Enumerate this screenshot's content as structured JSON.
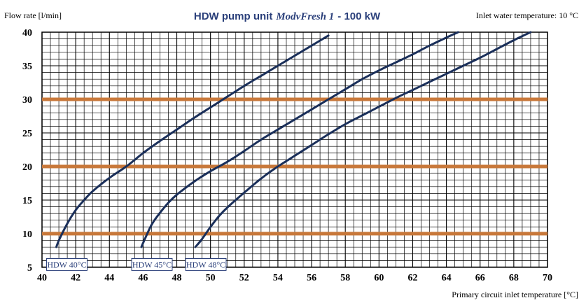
{
  "chart_data": {
    "type": "line",
    "title": "HDW pump unit",
    "title_model": "ModvFresh 1",
    "title_power": "- 100 kW",
    "ylabel": "Flow rate [l/min]",
    "xlabel": "Primary circuit inlet temperature [°C]",
    "note": "Inlet water temperature: 10 °C",
    "xlim": [
      40,
      70
    ],
    "ylim": [
      5,
      40
    ],
    "x_ticks": [
      40,
      42,
      44,
      46,
      48,
      50,
      52,
      54,
      56,
      58,
      60,
      62,
      64,
      66,
      68,
      70
    ],
    "y_ticks": [
      5,
      10,
      15,
      20,
      25,
      30,
      35,
      40
    ],
    "grid": true,
    "highlight_lines": [
      10,
      20,
      30
    ],
    "series": [
      {
        "name": "HDW 40°C",
        "x": [
          40.85,
          41.0,
          41.5,
          42.0,
          42.5,
          43.0,
          44.0,
          45.0,
          46.0,
          47.0,
          48.0,
          49.0,
          50.0,
          51.0,
          52.0,
          53.0,
          54.0,
          55.0,
          56.0,
          57.0
        ],
        "y": [
          8.0,
          9.0,
          11.5,
          13.5,
          15.0,
          16.3,
          18.3,
          20.0,
          22.0,
          23.8,
          25.5,
          27.2,
          28.8,
          30.4,
          32.0,
          33.5,
          35.0,
          36.5,
          38.0,
          39.5
        ]
      },
      {
        "name": "HDW 45°C",
        "x": [
          45.9,
          46.0,
          46.5,
          47.0,
          47.5,
          48.0,
          49.0,
          50.0,
          51.0,
          52.0,
          53.0,
          54.0,
          55.0,
          56.0,
          57.0,
          58.0,
          59.0,
          60.0,
          61.0,
          62.0,
          63.0,
          64.0,
          64.7
        ],
        "y": [
          8.0,
          8.6,
          11.3,
          13.1,
          14.6,
          15.8,
          17.7,
          19.3,
          20.7,
          22.3,
          24.0,
          25.5,
          27.0,
          28.5,
          30.0,
          31.5,
          33.0,
          34.3,
          35.5,
          36.7,
          38.0,
          39.2,
          40.0
        ]
      },
      {
        "name": "HDW 48°C",
        "x": [
          49.1,
          49.5,
          50.0,
          50.5,
          51.0,
          52.0,
          53.0,
          54.0,
          55.0,
          56.0,
          57.0,
          58.0,
          59.0,
          60.0,
          61.0,
          62.0,
          63.0,
          64.0,
          65.0,
          66.0,
          67.0,
          68.0,
          69.0
        ],
        "y": [
          8.0,
          9.2,
          11.0,
          12.6,
          13.9,
          16.1,
          18.2,
          20.0,
          21.6,
          23.2,
          24.8,
          26.3,
          27.6,
          28.9,
          30.2,
          31.4,
          32.6,
          33.8,
          35.0,
          36.2,
          37.5,
          38.8,
          40.0
        ]
      }
    ],
    "colors": {
      "curve": "#1a2f5a",
      "highlight": "#c8783a",
      "grid": "#000000",
      "title": "#2a3f7a",
      "label_text": "#2a3f7a"
    }
  }
}
